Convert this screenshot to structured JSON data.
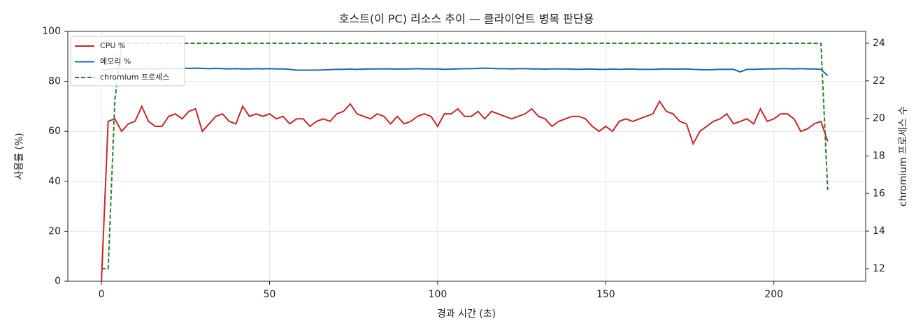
{
  "chart_data": {
    "type": "line",
    "title": "호스트(이 PC) 리소스 추이 — 클라이언트 병목 판단용",
    "xlabel": "경과 시간 (초)",
    "ylabel": "사용률 (%)",
    "y2label": "chromium 프로세스 수",
    "x": [
      0,
      2,
      4,
      6,
      8,
      10,
      12,
      14,
      16,
      18,
      20,
      22,
      24,
      26,
      28,
      30,
      32,
      34,
      36,
      38,
      40,
      42,
      44,
      46,
      48,
      50,
      52,
      54,
      56,
      58,
      60,
      62,
      64,
      66,
      68,
      70,
      72,
      74,
      76,
      78,
      80,
      82,
      84,
      86,
      88,
      90,
      92,
      94,
      96,
      98,
      100,
      102,
      104,
      106,
      108,
      110,
      112,
      114,
      116,
      118,
      120,
      122,
      124,
      126,
      128,
      130,
      132,
      134,
      136,
      138,
      140,
      142,
      144,
      146,
      148,
      150,
      152,
      154,
      156,
      158,
      160,
      162,
      164,
      166,
      168,
      170,
      172,
      174,
      176,
      178,
      180,
      182,
      184,
      186,
      188,
      190,
      192,
      194,
      196,
      198,
      200,
      202,
      204,
      206,
      208,
      210,
      212,
      214,
      216
    ],
    "series": [
      {
        "name": "CPU %",
        "color": "#c62828",
        "values": [
          0,
          64,
          65,
          60,
          63,
          64,
          70,
          64,
          62,
          62,
          66,
          67,
          65,
          68,
          69,
          60,
          63,
          66,
          67,
          64,
          63,
          70,
          66,
          67,
          66,
          67,
          65,
          66,
          63,
          65,
          65,
          62,
          64,
          65,
          64,
          67,
          68,
          71,
          67,
          66,
          65,
          67,
          66,
          63,
          66,
          63,
          64,
          66,
          67,
          66,
          62,
          67,
          67,
          69,
          66,
          66,
          68,
          65,
          68,
          67,
          66,
          65,
          66,
          67,
          69,
          66,
          65,
          62,
          64,
          65,
          66,
          66,
          65,
          62,
          60,
          62,
          60,
          64,
          65,
          64,
          65,
          66,
          67,
          72,
          68,
          67,
          64,
          63,
          55,
          60,
          62,
          64,
          65,
          67,
          63,
          64,
          65,
          63,
          69,
          64,
          65,
          67,
          67,
          65,
          60,
          61,
          63,
          64,
          56
        ]
      },
      {
        "name": "메모리 %",
        "color": "#1f66b0",
        "values": [
          84.5,
          84.8,
          85,
          85,
          85,
          85,
          85,
          85.1,
          85,
          85.2,
          85.1,
          85.2,
          85.3,
          85.2,
          85.3,
          85.2,
          85.1,
          85.2,
          85.1,
          85.0,
          85.1,
          85.0,
          85.0,
          85.1,
          85.0,
          85.1,
          85.0,
          85.0,
          84.8,
          84.5,
          84.5,
          84.5,
          84.5,
          84.6,
          84.7,
          84.8,
          84.8,
          84.9,
          84.8,
          84.9,
          85.0,
          85.0,
          85.0,
          85.0,
          84.9,
          85.0,
          85.0,
          85.1,
          85.0,
          85.0,
          85.0,
          84.8,
          84.9,
          85.0,
          85.1,
          85.1,
          85.2,
          85.3,
          85.2,
          85.1,
          85.1,
          85.0,
          85.1,
          85.1,
          85.0,
          85.0,
          84.9,
          85.0,
          85.0,
          85.0,
          84.9,
          84.8,
          84.9,
          84.9,
          84.8,
          84.8,
          84.9,
          84.8,
          84.9,
          84.9,
          84.8,
          84.8,
          84.8,
          84.9,
          85.0,
          84.9,
          84.9,
          85.0,
          84.8,
          84.7,
          84.6,
          84.7,
          84.8,
          84.8,
          84.8,
          83.8,
          84.8,
          84.8,
          84.9,
          85.0,
          85.0,
          85.1,
          85.1,
          85.0,
          85.1,
          85.0,
          85.0,
          84.8,
          82.3
        ]
      },
      {
        "name": "chromium 프로세스",
        "color": "#2e7d32",
        "dashed": true,
        "axis": "y2",
        "values": [
          12,
          12,
          21,
          24,
          24,
          24,
          24,
          24,
          24,
          24,
          24,
          24,
          24,
          24,
          24,
          24,
          24,
          24,
          24,
          24,
          24,
          24,
          24,
          24,
          24,
          24,
          24,
          24,
          24,
          24,
          24,
          24,
          24,
          24,
          24,
          24,
          24,
          24,
          24,
          24,
          24,
          24,
          24,
          24,
          24,
          24,
          24,
          24,
          24,
          24,
          24,
          24,
          24,
          24,
          24,
          24,
          24,
          24,
          24,
          24,
          24,
          24,
          24,
          24,
          24,
          24,
          24,
          24,
          24,
          24,
          24,
          24,
          24,
          24,
          24,
          24,
          24,
          24,
          24,
          24,
          24,
          24,
          24,
          24,
          24,
          24,
          24,
          24,
          24,
          24,
          24,
          24,
          24,
          24,
          24,
          24,
          24,
          24,
          24,
          24,
          24,
          24,
          24,
          24,
          24,
          24,
          24,
          24,
          16.2
        ]
      }
    ],
    "xlim": [
      -10,
      227.3
    ],
    "xticks": [
      0,
      50,
      100,
      150,
      200
    ],
    "ylim": [
      0,
      100
    ],
    "yticks": [
      0,
      20,
      40,
      60,
      80,
      100
    ],
    "y2lim": [
      11.33,
      24.63
    ],
    "y2ticks": [
      12,
      14,
      16,
      18,
      20,
      22,
      24
    ],
    "grid": true,
    "legend": "upper-left"
  }
}
